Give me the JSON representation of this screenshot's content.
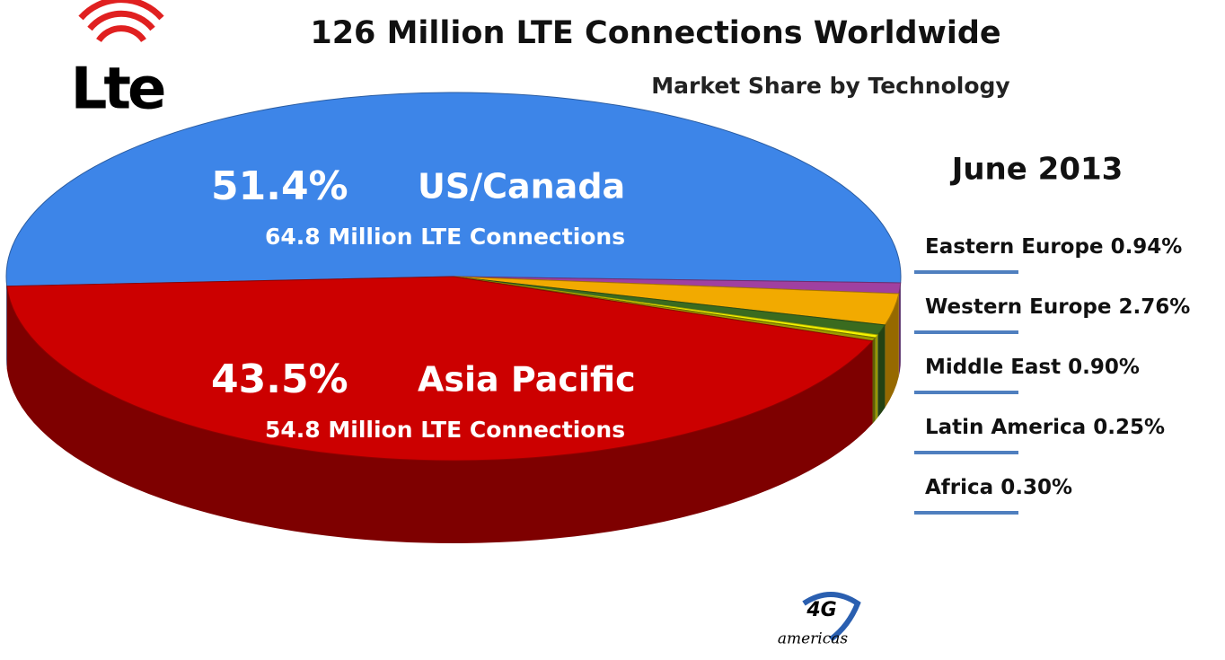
{
  "chart_data": {
    "type": "pie3d",
    "title": "126 Million LTE Connections Worldwide",
    "subtitle": "Market Share by Technology",
    "date_label": "June 2013",
    "categories": [
      "US/Canada",
      "Eastern Europe",
      "Western Europe",
      "Middle East",
      "Latin America",
      "Africa",
      "Asia Pacific"
    ],
    "values": [
      51.4,
      0.94,
      2.76,
      0.9,
      0.25,
      0.3,
      43.5
    ],
    "value_labels": [
      "51.4%",
      "0.94%",
      "2.76%",
      "0.90%",
      "0.25%",
      "0.30%",
      "43.5%"
    ],
    "colors": [
      "#3d85e8",
      "#a040a0",
      "#f2aa00",
      "#3a6b1f",
      "#f4f400",
      "#9a9a00",
      "#cc0000"
    ],
    "annotations": [
      "64.8 Million LTE Connections",
      null,
      null,
      null,
      null,
      null,
      "54.8 Million LTE Connections"
    ],
    "logos": [
      "Lte",
      "4G",
      "americas"
    ]
  }
}
